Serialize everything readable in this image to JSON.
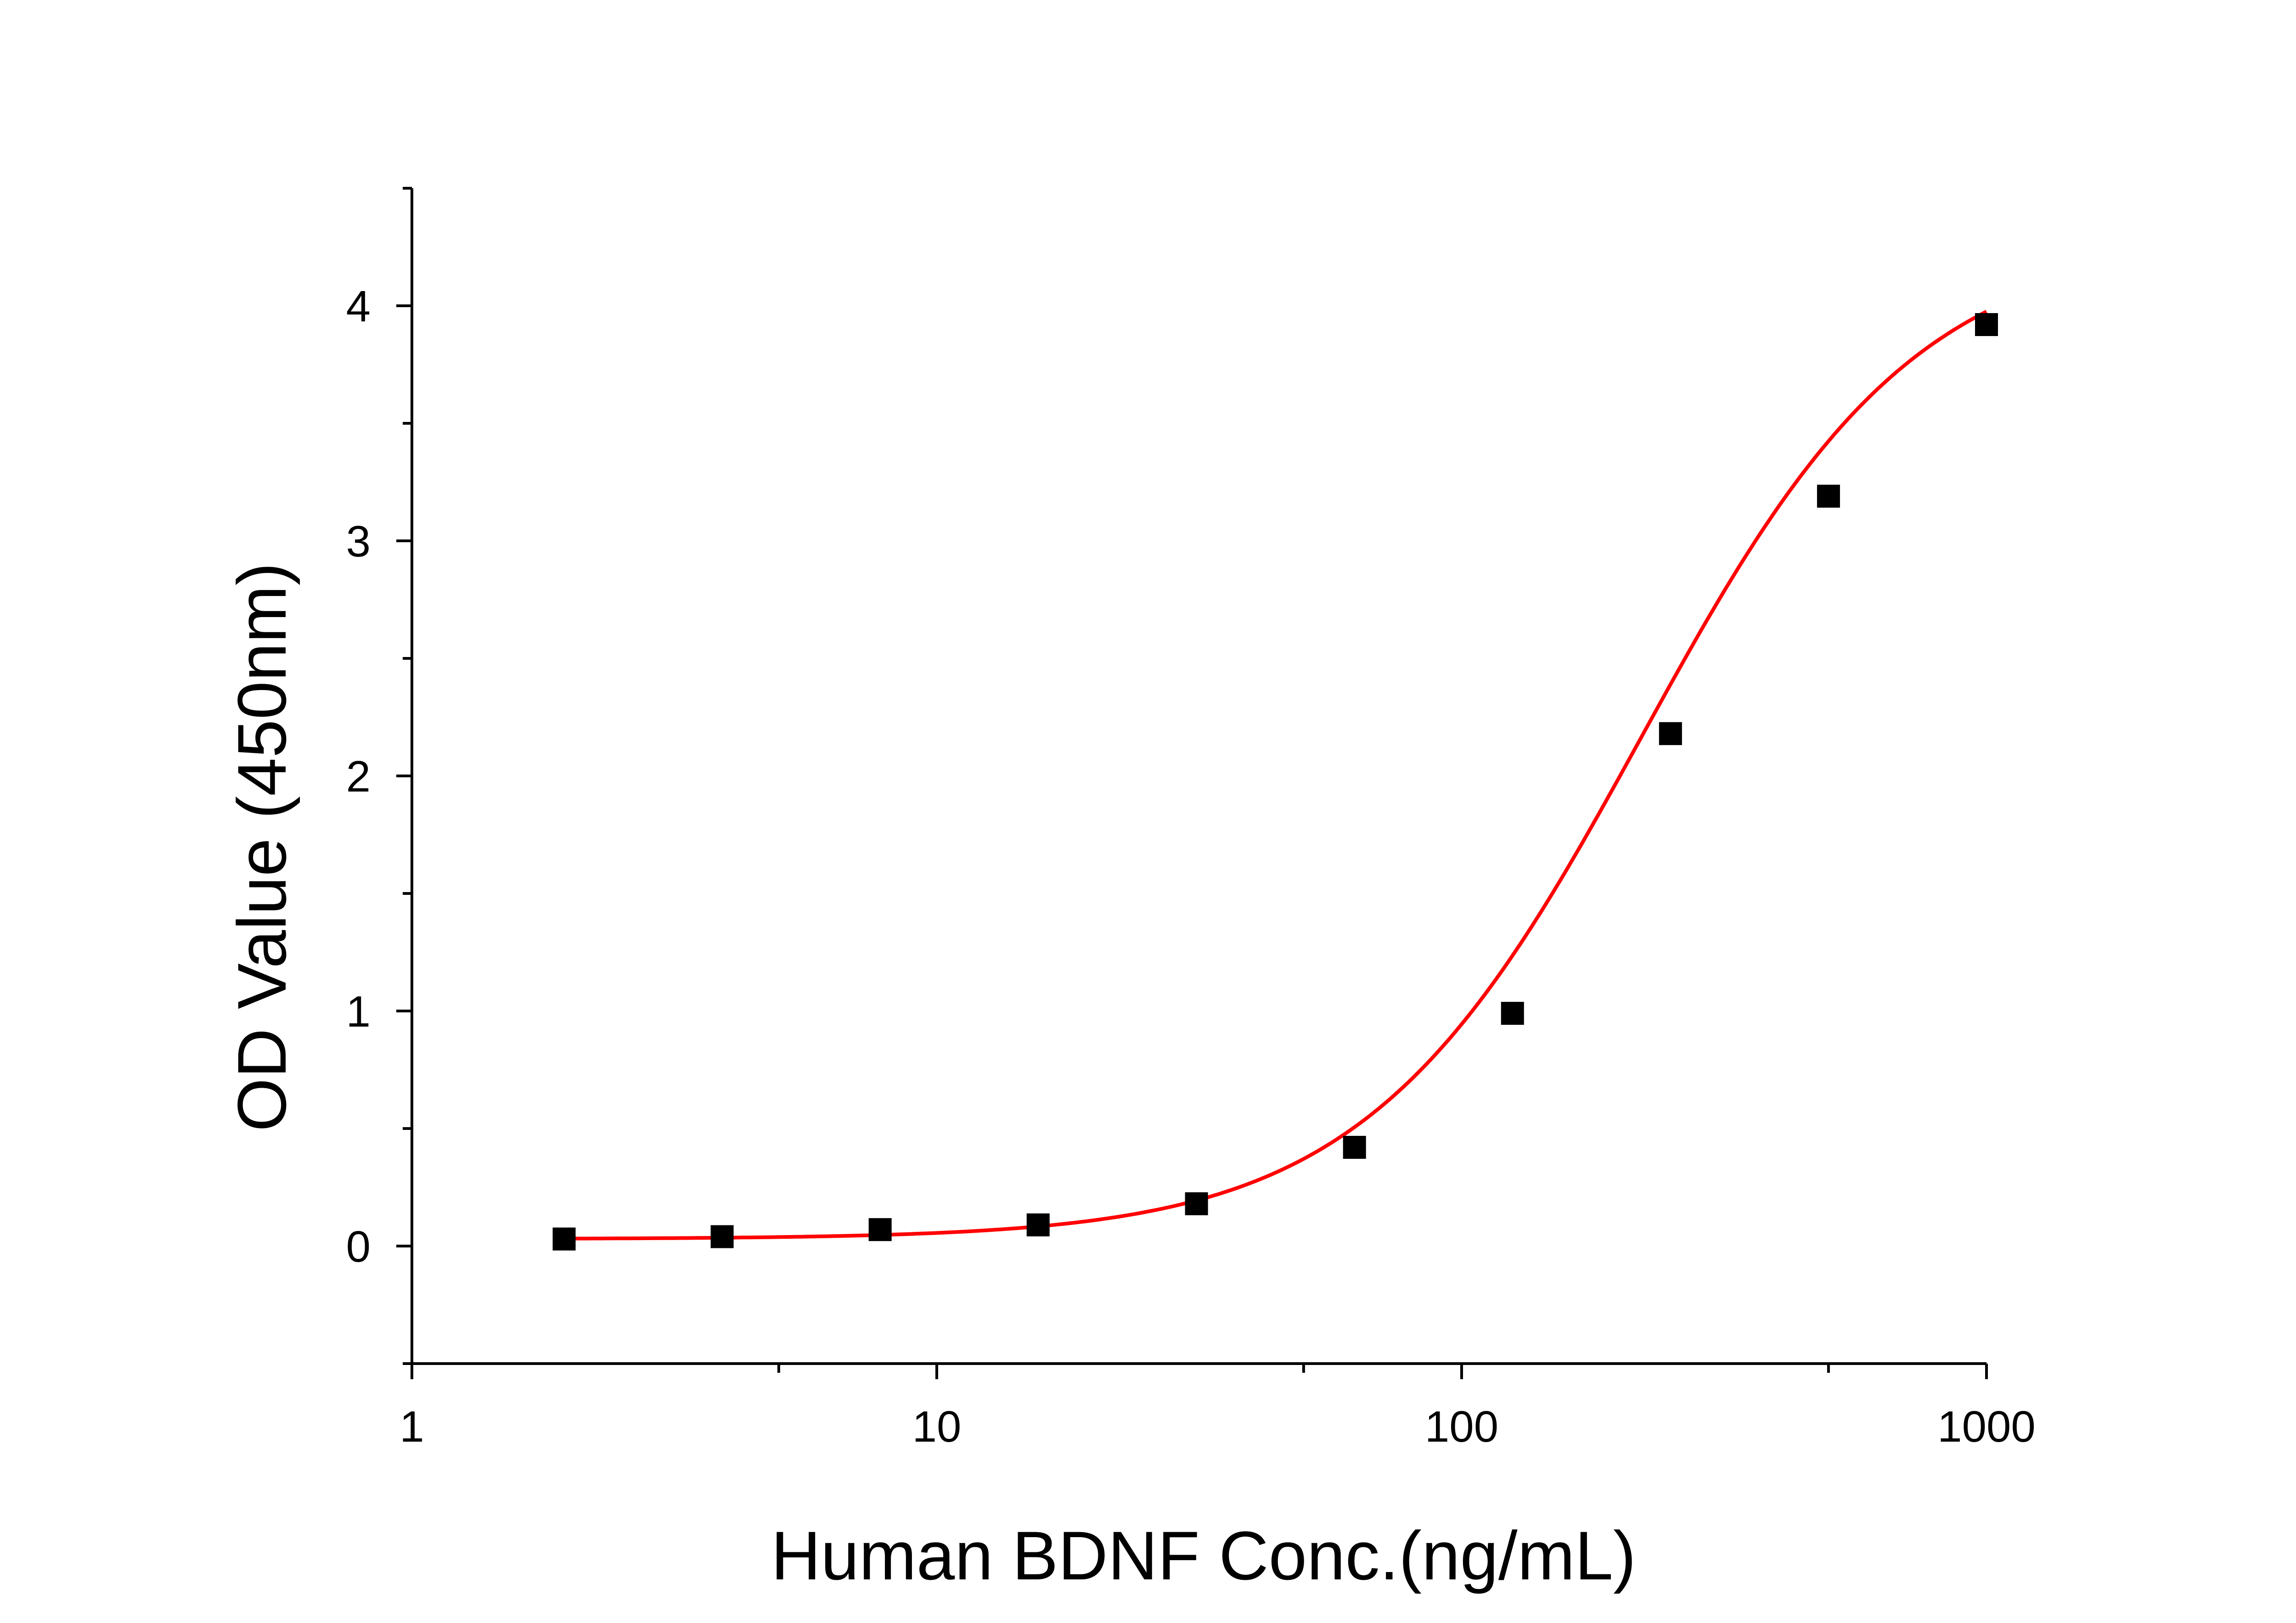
{
  "chart_data": {
    "type": "scatter",
    "title": "",
    "xlabel": "Human BDNF Conc.(ng/mL)",
    "ylabel": "OD Value (450nm)",
    "x_scale": "log",
    "xlim": [
      1,
      1000
    ],
    "ylim": [
      -0.5,
      4.5
    ],
    "x_ticks": [
      1,
      10,
      100,
      1000
    ],
    "x_tick_labels": [
      "1",
      "10",
      "100",
      "1000"
    ],
    "y_ticks": [
      0,
      1,
      2,
      3,
      4
    ],
    "y_tick_labels": [
      "0",
      "1",
      "2",
      "3",
      "4"
    ],
    "grid": false,
    "legend": "none",
    "series": [
      {
        "kind": "points",
        "marker": "square",
        "color": "#000000",
        "x": [
          1.95,
          3.9,
          7.8,
          15.6,
          31.25,
          62.5,
          125,
          250,
          500,
          1000
        ],
        "y": [
          0.03,
          0.04,
          0.07,
          0.09,
          0.18,
          0.42,
          0.99,
          2.18,
          3.19,
          3.92
        ]
      },
      {
        "kind": "fit-curve",
        "color": "#ff0000",
        "model": "4PL",
        "bottom": 0.03,
        "top": 4.3,
        "ec50": 220,
        "hill": 1.65
      }
    ]
  }
}
